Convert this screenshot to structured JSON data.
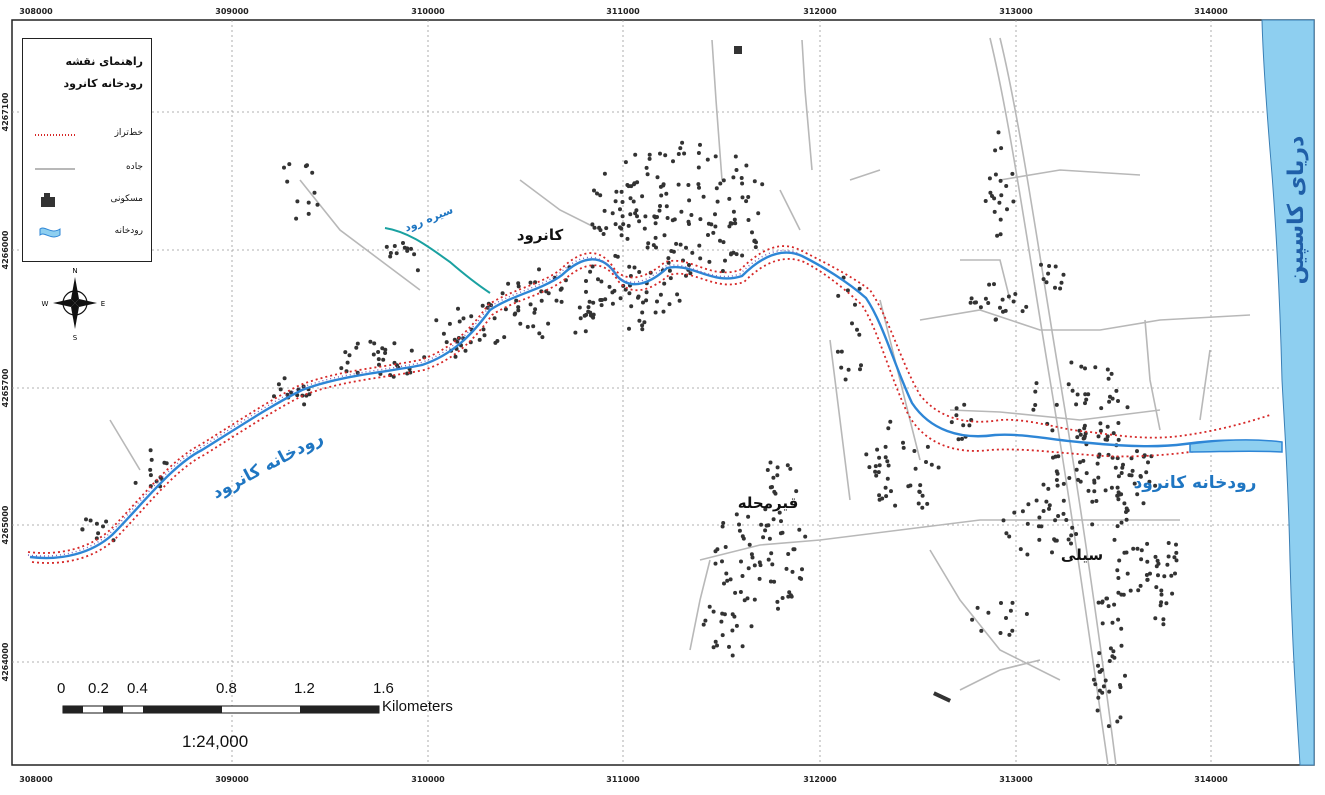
{
  "grid": {
    "x_labels": [
      "308000",
      "309000",
      "310000",
      "311000",
      "312000",
      "313000",
      "314000"
    ],
    "y_labels": [
      "4267100",
      "4266000",
      "4265700",
      "4265000",
      "4264000"
    ]
  },
  "legend": {
    "title_line1": "راهنمای نقشه",
    "title_line2": "رودخانه کانرود",
    "items": [
      {
        "label": "خط‌تراز",
        "symbol": "dotted-red-line"
      },
      {
        "label": "جاده",
        "symbol": "gray-line"
      },
      {
        "label": "مسکونی",
        "symbol": "building-icon"
      },
      {
        "label": "رودخانه",
        "symbol": "river-icon"
      }
    ]
  },
  "labels": {
    "sea": "دریای کاسپین",
    "village_north": "کانرود",
    "village_mid": "قیرمحله",
    "village_east": "سیلی",
    "river_west": "رودخانه کانرود",
    "river_east": "رودخانه کانرود",
    "stream": "سیره رود"
  },
  "scale_bar": {
    "ticks": [
      "0",
      "0.2",
      "0.4",
      "0.8",
      "1.2",
      "1.6"
    ],
    "unit": "Kilometers",
    "ratio": "1:24,000"
  },
  "north_arrow": {
    "n": "N",
    "s": "S",
    "e": "E",
    "w": "W"
  },
  "colors": {
    "sea": "#8ecff0",
    "river": "#2e86d6",
    "contour": "#d62828",
    "buffer": "#6a5acd",
    "road": "#b5b5b5",
    "settlement": "#333333"
  }
}
